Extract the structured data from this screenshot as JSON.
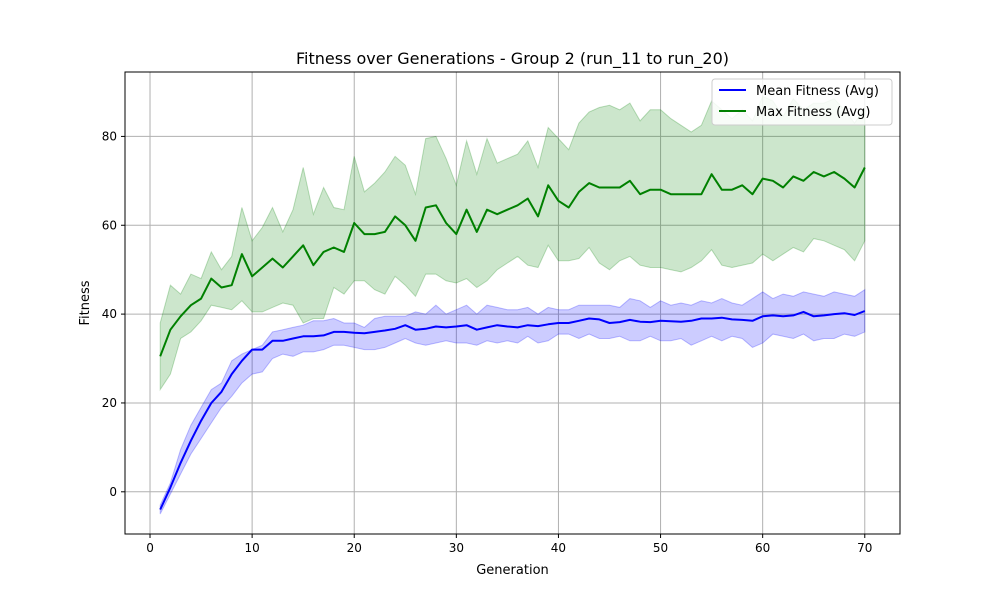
{
  "chart_data": {
    "type": "line",
    "title": "Fitness over Generations - Group 2 (run_11 to run_20)",
    "xlabel": "Generation",
    "ylabel": "Fitness",
    "xlim": [
      -2.45,
      73.45
    ],
    "ylim": [
      -9.5,
      94.5
    ],
    "xticks": [
      0,
      10,
      20,
      30,
      40,
      50,
      60,
      70
    ],
    "yticks": [
      0,
      20,
      40,
      60,
      80
    ],
    "grid": true,
    "legend_position": "top-right",
    "x": [
      1,
      2,
      3,
      4,
      5,
      6,
      7,
      8,
      9,
      10,
      11,
      12,
      13,
      14,
      15,
      16,
      17,
      18,
      19,
      20,
      21,
      22,
      23,
      24,
      25,
      26,
      27,
      28,
      29,
      30,
      31,
      32,
      33,
      34,
      35,
      36,
      37,
      38,
      39,
      40,
      41,
      42,
      43,
      44,
      45,
      46,
      47,
      48,
      49,
      50,
      51,
      52,
      53,
      54,
      55,
      56,
      57,
      58,
      59,
      60,
      61,
      62,
      63,
      64,
      65,
      66,
      67,
      68,
      69,
      70
    ],
    "series": [
      {
        "name": "Mean Fitness (Avg)",
        "color": "#0000ff",
        "band_color": "#0000ff",
        "values": [
          -4,
          1,
          6.5,
          11.5,
          16,
          20,
          22.5,
          26.5,
          29.5,
          32,
          32,
          34,
          34,
          34.5,
          35,
          35,
          35.2,
          36,
          36,
          35.8,
          35.7,
          36,
          36.3,
          36.7,
          37.5,
          36.5,
          36.7,
          37.2,
          37,
          37.2,
          37.5,
          36.5,
          37,
          37.5,
          37.2,
          37,
          37.5,
          37.3,
          37.7,
          38,
          38,
          38.5,
          39,
          38.8,
          38,
          38.2,
          38.7,
          38.3,
          38.2,
          38.5,
          38.4,
          38.3,
          38.5,
          39,
          39,
          39.2,
          38.8,
          38.7,
          38.5,
          39.5,
          39.7,
          39.5,
          39.7,
          40.5,
          39.5,
          39.7,
          40,
          40.2,
          39.8,
          40.7
        ],
        "upper": [
          -3,
          2,
          9.5,
          15,
          19,
          23,
          24.5,
          29.5,
          31,
          32,
          33,
          36,
          36.5,
          37,
          37.5,
          38.5,
          38.5,
          39,
          38,
          38,
          37,
          39,
          39.5,
          39.5,
          39.5,
          40.5,
          40,
          42,
          40,
          41,
          42,
          40,
          42,
          41.5,
          41,
          41,
          41.5,
          40,
          41.5,
          41,
          41,
          42,
          42,
          42,
          42,
          41.5,
          43.5,
          43,
          41.5,
          43,
          42,
          42.5,
          42,
          43,
          42.5,
          43.5,
          42.5,
          42,
          43.5,
          45,
          43.5,
          44.5,
          44,
          45,
          44.5,
          44,
          45,
          44.5,
          44,
          45.5
        ],
        "lower": [
          -5,
          -0.5,
          4,
          8.5,
          12,
          15.5,
          19,
          21.5,
          24.5,
          26.5,
          27,
          30,
          31,
          30.5,
          31.5,
          31.5,
          32,
          33,
          33,
          32.5,
          32,
          32,
          32.5,
          33.5,
          34.5,
          33.5,
          33,
          33.5,
          34,
          33.5,
          33.5,
          33,
          34,
          33.5,
          34,
          33.5,
          35,
          33.5,
          34,
          35.5,
          35.5,
          34.5,
          35.5,
          34.5,
          34.5,
          35,
          34,
          34,
          35,
          34,
          34,
          34.5,
          33,
          34,
          35,
          34,
          35,
          34.5,
          32.5,
          33.5,
          35.5,
          35,
          34.5,
          35.5,
          34,
          34.5,
          34.5,
          35.5,
          35,
          36
        ]
      },
      {
        "name": "Max Fitness (Avg)",
        "color": "#008000",
        "band_color": "#008000",
        "values": [
          30.5,
          36.5,
          39.5,
          42,
          43.5,
          48,
          46,
          46.5,
          53.5,
          48.5,
          50.5,
          52.5,
          50.5,
          53,
          55.5,
          51,
          54,
          55,
          54,
          60.5,
          58,
          58,
          58.5,
          62,
          60,
          56.5,
          64,
          64.5,
          60.5,
          58,
          63.5,
          58.5,
          63.5,
          62.5,
          63.5,
          64.5,
          66,
          62,
          69,
          65.5,
          64,
          67.5,
          69.5,
          68.5,
          68.5,
          68.5,
          70,
          67,
          68,
          68,
          67,
          67,
          67,
          67,
          71.5,
          68,
          68,
          69,
          67,
          70.5,
          70,
          68.5,
          71,
          70,
          72,
          71,
          72,
          70.5,
          68.5,
          73
        ],
        "upper": [
          38,
          46.5,
          44.5,
          49,
          48,
          54,
          50,
          53,
          64,
          56.5,
          59.5,
          64,
          58.5,
          63.5,
          73,
          62.5,
          68.5,
          64,
          63.5,
          75.5,
          67.5,
          69.5,
          72,
          75.5,
          73.5,
          67,
          79.5,
          80,
          75,
          69,
          79,
          71.5,
          79.5,
          74,
          75,
          76,
          79,
          73,
          82,
          79.5,
          77,
          83,
          85.5,
          86.5,
          87,
          86,
          87.5,
          83.5,
          86,
          86,
          84,
          82.5,
          81,
          82.5,
          88,
          86,
          84,
          86,
          83.5,
          89,
          88,
          84.5,
          88.5,
          86,
          87.5,
          87.5,
          88.5,
          86,
          83,
          86.5
        ],
        "lower": [
          23,
          26.5,
          34.5,
          36,
          38.5,
          42,
          41.5,
          41,
          43,
          40.5,
          40.5,
          41.5,
          42.5,
          42,
          38,
          39,
          39,
          46,
          44.5,
          47.5,
          47.5,
          45.5,
          44.5,
          48.5,
          46.5,
          44,
          49,
          49,
          47.5,
          47,
          48,
          46,
          47.5,
          50,
          51.5,
          53,
          51,
          50.5,
          55.5,
          52,
          52,
          52.5,
          55,
          51.5,
          50,
          52,
          53,
          51,
          50.5,
          50.5,
          50,
          49.5,
          50.5,
          52,
          54.5,
          51,
          50.5,
          51,
          51.5,
          53.5,
          52,
          53.5,
          55,
          54,
          57,
          56.5,
          55.5,
          54.5,
          52,
          56.5
        ]
      }
    ]
  }
}
